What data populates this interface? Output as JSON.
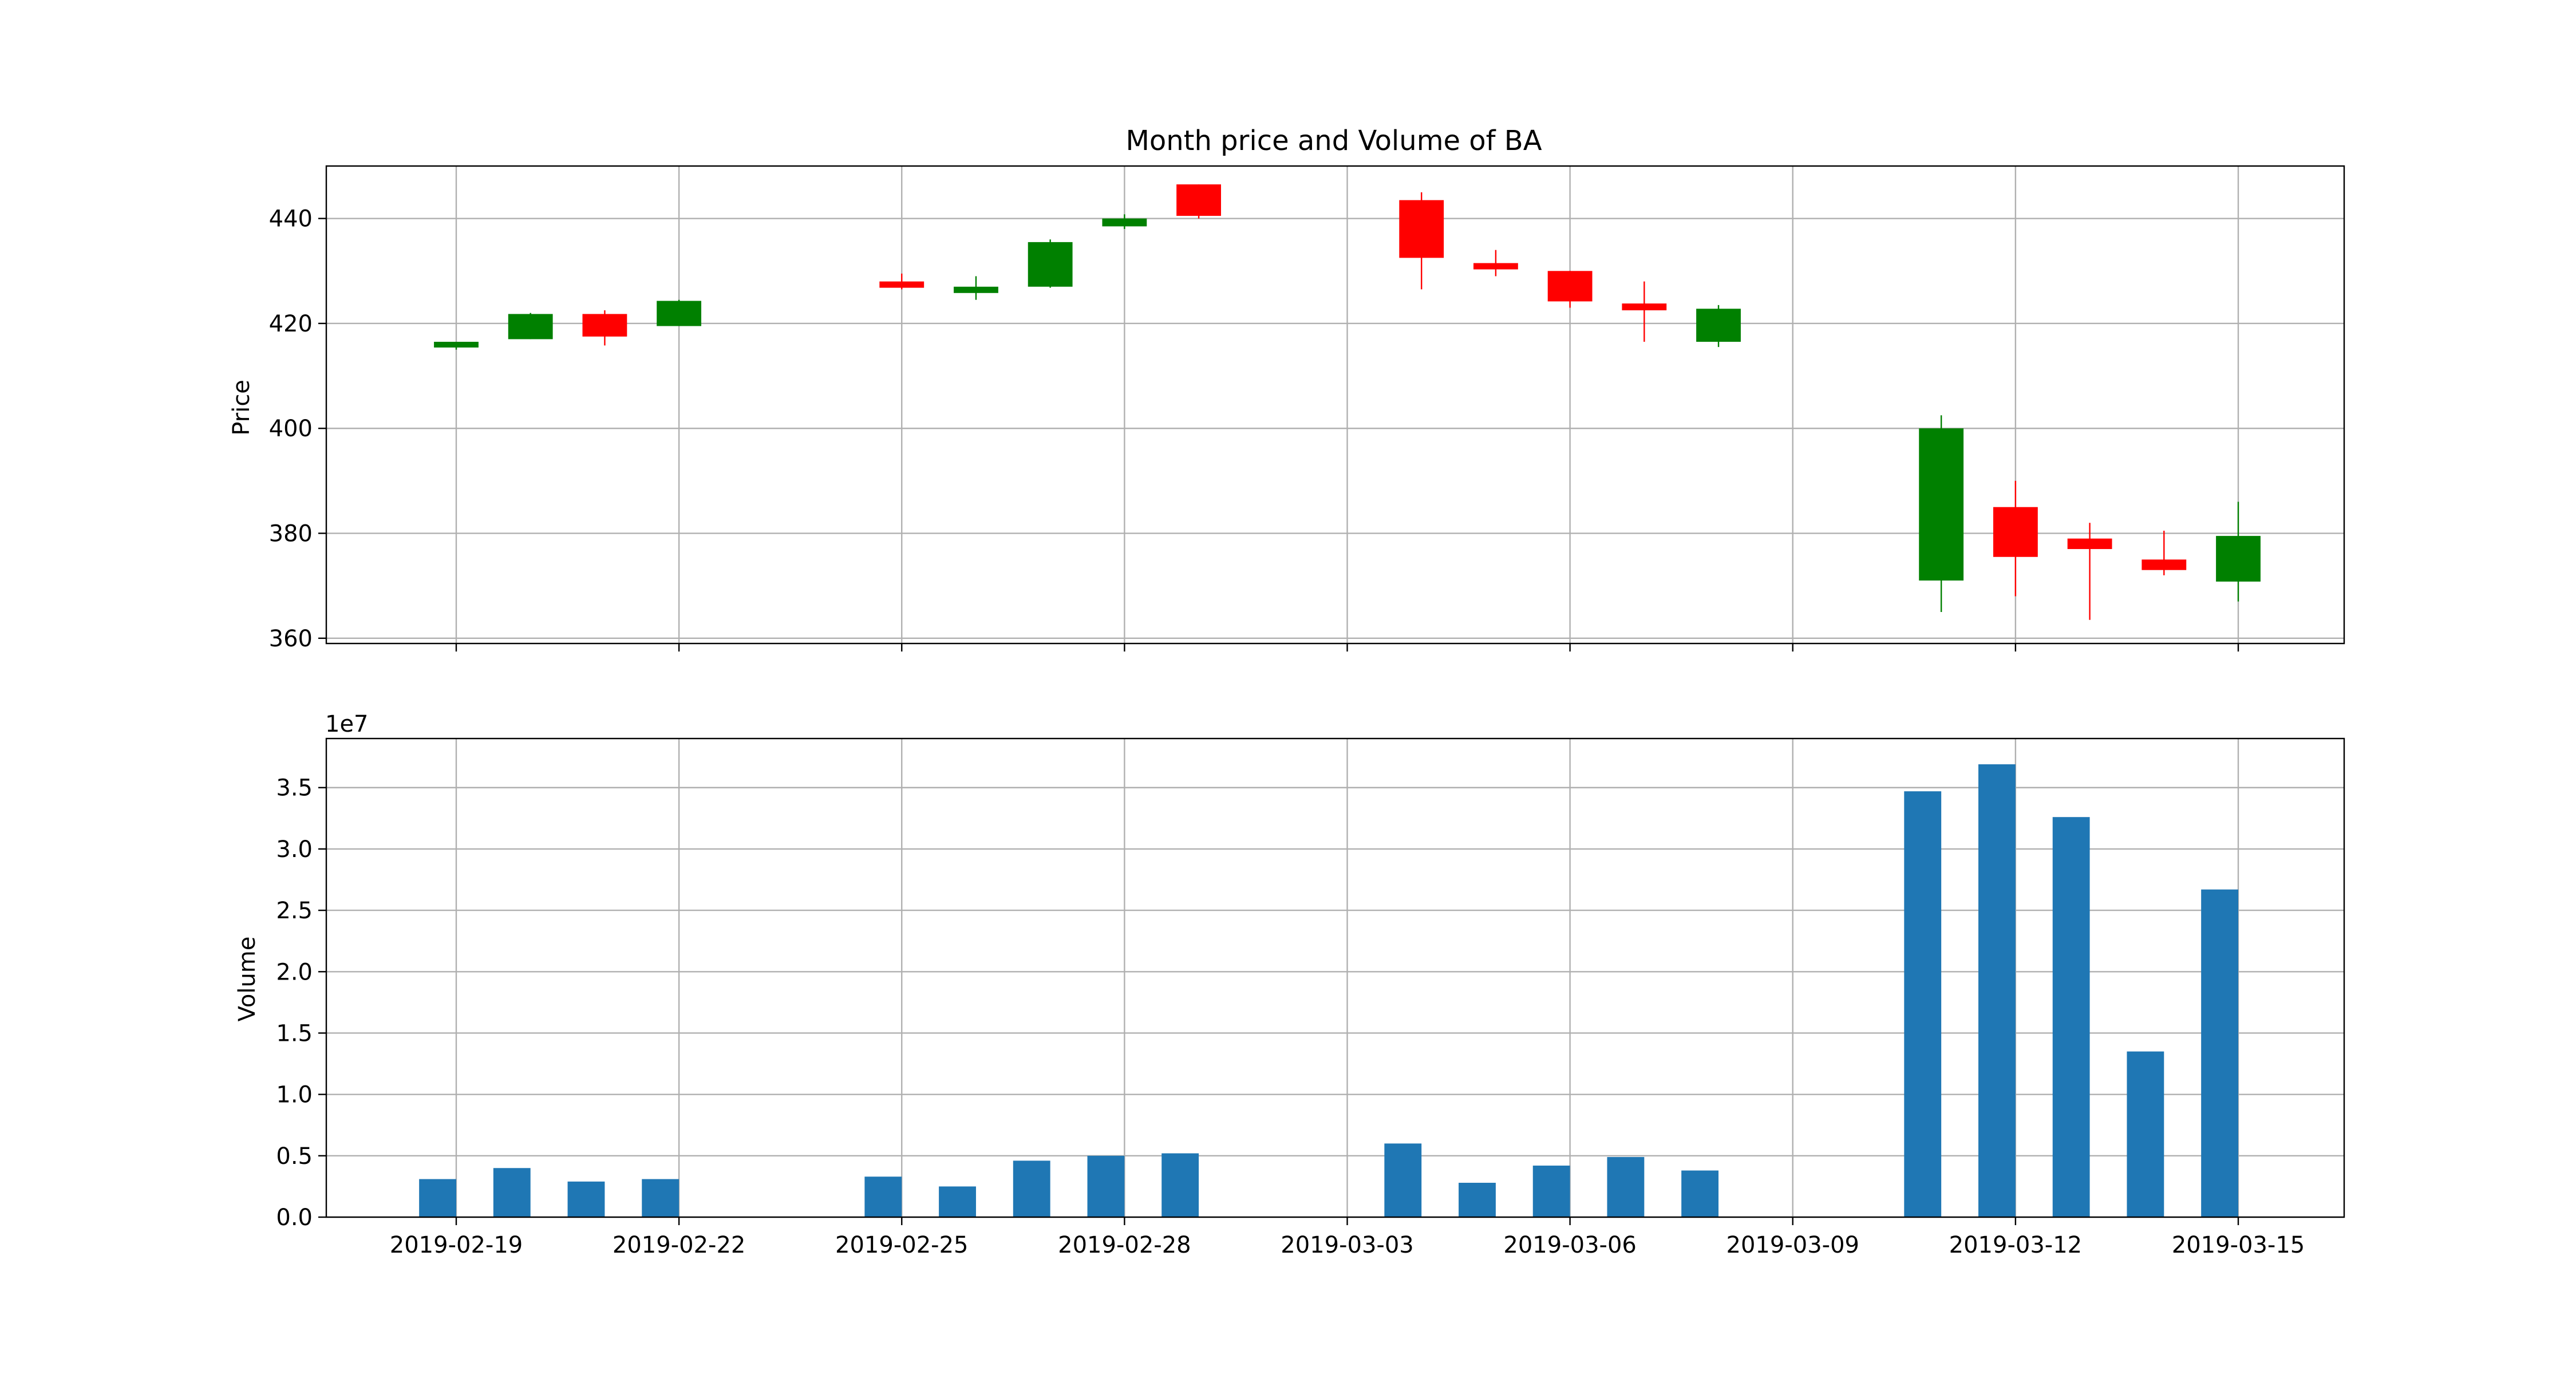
{
  "chart_data": [
    {
      "type": "candlestick",
      "title": "Month price and Volume of BA",
      "ylabel": "Price",
      "ylim": [
        359,
        450
      ],
      "y_ticks": [
        "360",
        "380",
        "400",
        "420",
        "440"
      ],
      "x_ticks": [
        "2019-02-19",
        "2019-02-22",
        "2019-02-25",
        "2019-02-28",
        "2019-03-03",
        "2019-03-06",
        "2019-03-09",
        "2019-03-12",
        "2019-03-15"
      ],
      "grid": true,
      "colors": {
        "up": "#008000",
        "down": "#ff0000"
      },
      "candles": [
        {
          "date": "2019-02-19",
          "open": 415.5,
          "high": 416.5,
          "low": 415.0,
          "close": 416.5
        },
        {
          "date": "2019-02-20",
          "open": 417.0,
          "high": 422.0,
          "low": 417.0,
          "close": 421.8
        },
        {
          "date": "2019-02-21",
          "open": 421.8,
          "high": 422.5,
          "low": 415.8,
          "close": 417.5
        },
        {
          "date": "2019-02-22",
          "open": 419.5,
          "high": 424.5,
          "low": 419.5,
          "close": 424.3
        },
        {
          "date": "2019-02-25",
          "open": 428.0,
          "high": 429.5,
          "low": 426.5,
          "close": 426.8
        },
        {
          "date": "2019-02-26",
          "open": 425.8,
          "high": 429.0,
          "low": 424.5,
          "close": 427.0
        },
        {
          "date": "2019-02-27",
          "open": 427.0,
          "high": 436.0,
          "low": 426.8,
          "close": 435.5
        },
        {
          "date": "2019-02-28",
          "open": 438.5,
          "high": 440.8,
          "low": 438.0,
          "close": 440.0
        },
        {
          "date": "2019-03-01",
          "open": 446.5,
          "high": 446.5,
          "low": 440.0,
          "close": 440.5
        },
        {
          "date": "2019-03-04",
          "open": 443.5,
          "high": 445.0,
          "low": 426.5,
          "close": 432.5
        },
        {
          "date": "2019-03-05",
          "open": 431.5,
          "high": 434.0,
          "low": 429.0,
          "close": 430.3
        },
        {
          "date": "2019-03-06",
          "open": 430.0,
          "high": 430.0,
          "low": 423.0,
          "close": 424.2
        },
        {
          "date": "2019-03-07",
          "open": 423.8,
          "high": 428.0,
          "low": 416.5,
          "close": 422.5
        },
        {
          "date": "2019-03-08",
          "open": 416.5,
          "high": 423.5,
          "low": 415.5,
          "close": 422.8
        },
        {
          "date": "2019-03-11",
          "open": 371.0,
          "high": 402.5,
          "low": 365.0,
          "close": 400.0
        },
        {
          "date": "2019-03-12",
          "open": 385.0,
          "high": 390.0,
          "low": 368.0,
          "close": 375.5
        },
        {
          "date": "2019-03-13",
          "open": 379.0,
          "high": 382.0,
          "low": 363.5,
          "close": 377.0
        },
        {
          "date": "2019-03-14",
          "open": 375.0,
          "high": 380.5,
          "low": 372.0,
          "close": 373.0
        },
        {
          "date": "2019-03-15",
          "open": 370.8,
          "high": 386.0,
          "low": 367.0,
          "close": 379.5
        }
      ]
    },
    {
      "type": "bar",
      "ylabel": "Volume",
      "offset_text": "1e7",
      "ylim": [
        0,
        3.9
      ],
      "y_ticks": [
        "0.0",
        "0.5",
        "1.0",
        "1.5",
        "2.0",
        "2.5",
        "3.0",
        "3.5"
      ],
      "x_ticks": [
        "2019-02-19",
        "2019-02-22",
        "2019-02-25",
        "2019-02-28",
        "2019-03-03",
        "2019-03-06",
        "2019-03-09",
        "2019-03-12",
        "2019-03-15"
      ],
      "grid": true,
      "color": "#1f77b4",
      "categories": [
        "2019-02-19",
        "2019-02-20",
        "2019-02-21",
        "2019-02-22",
        "2019-02-25",
        "2019-02-26",
        "2019-02-27",
        "2019-02-28",
        "2019-03-01",
        "2019-03-04",
        "2019-03-05",
        "2019-03-06",
        "2019-03-07",
        "2019-03-08",
        "2019-03-11",
        "2019-03-12",
        "2019-03-13",
        "2019-03-14",
        "2019-03-15"
      ],
      "values": [
        0.31,
        0.4,
        0.29,
        0.31,
        0.33,
        0.25,
        0.46,
        0.5,
        0.52,
        0.6,
        0.28,
        0.42,
        0.49,
        0.38,
        3.47,
        3.69,
        3.26,
        1.35,
        2.67
      ]
    }
  ]
}
